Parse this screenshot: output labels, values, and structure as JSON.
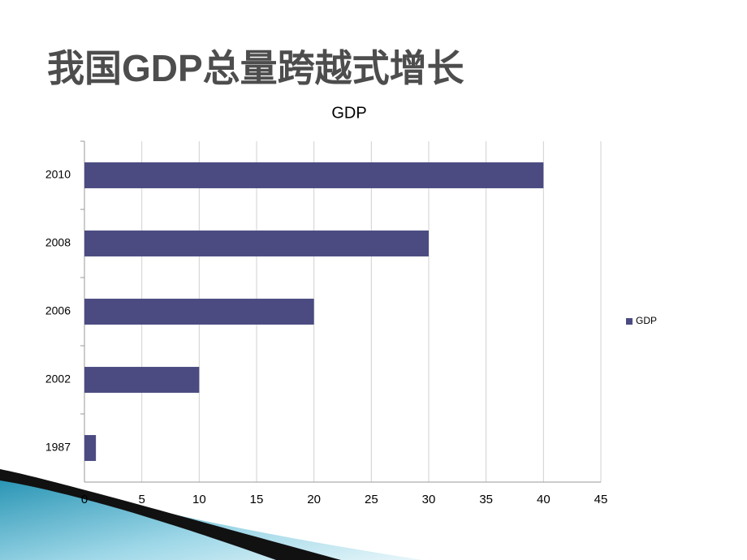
{
  "slide_title": "我国GDP总量跨越式增长",
  "chart_data": {
    "type": "barh",
    "title": "GDP",
    "categories": [
      "2010",
      "2008",
      "2006",
      "2002",
      "1987"
    ],
    "series": [
      {
        "name": "GDP",
        "color": "#4b4b82",
        "values": [
          40,
          30,
          20,
          10,
          1
        ]
      }
    ],
    "xlim": [
      0,
      45
    ],
    "xticks": [
      0,
      5,
      10,
      15,
      20,
      25,
      30,
      35,
      40,
      45
    ],
    "grid": true,
    "legend": "right"
  }
}
